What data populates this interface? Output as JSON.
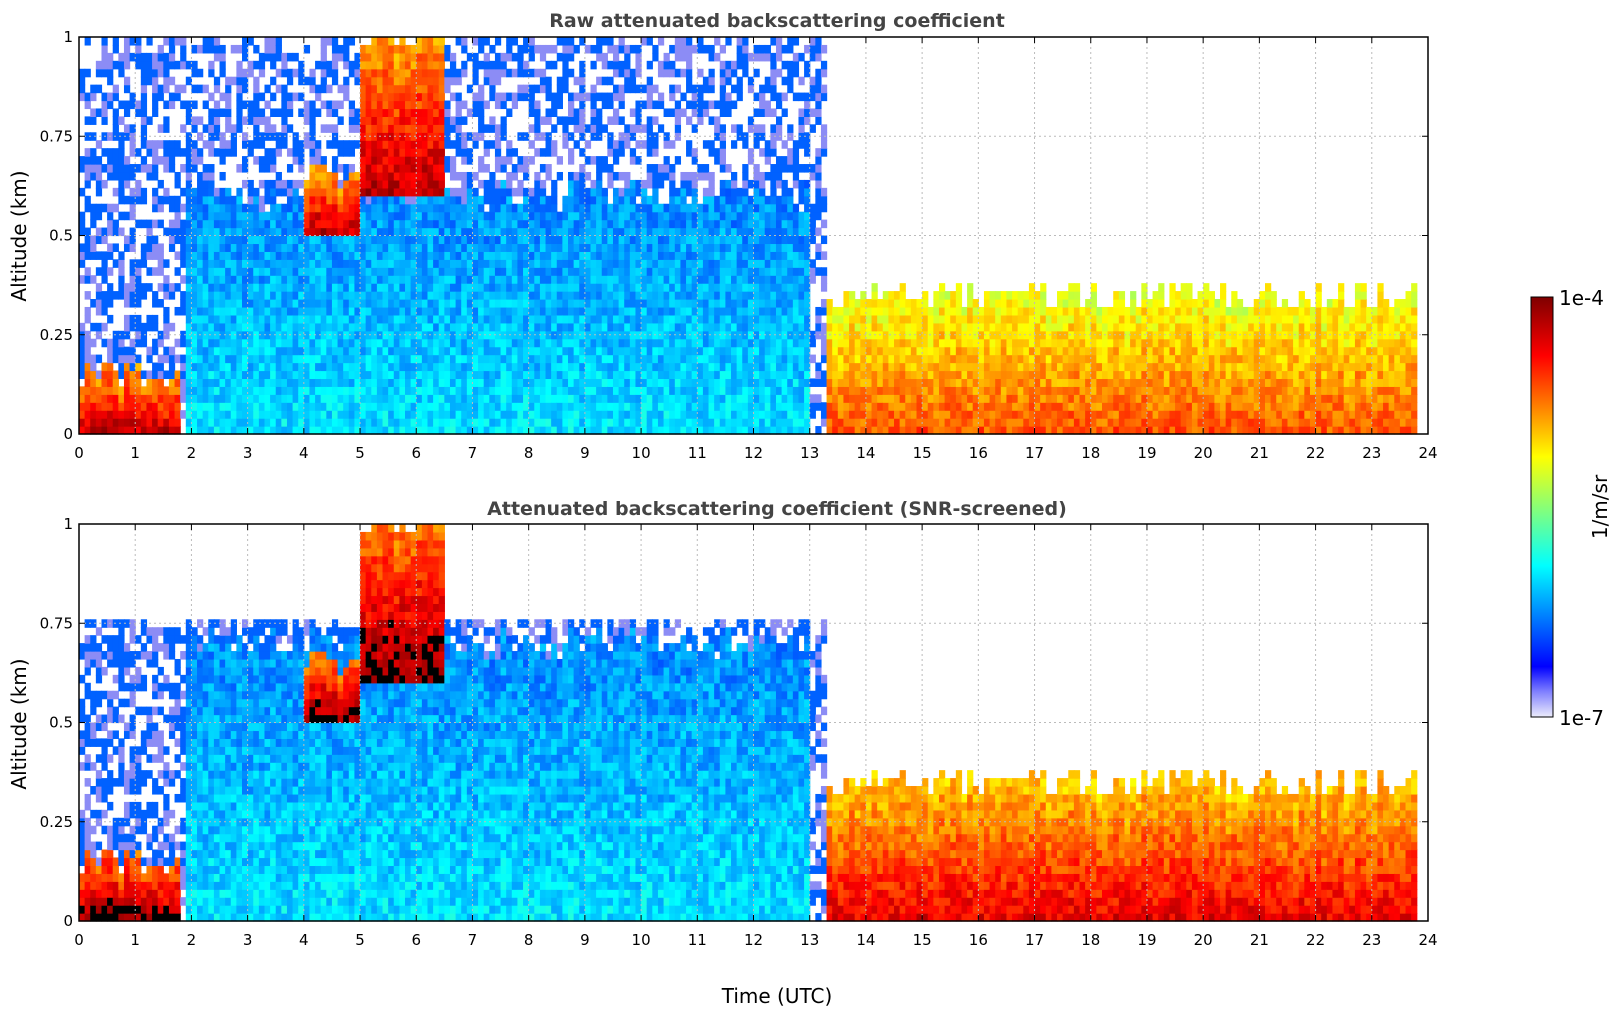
{
  "chart_data": [
    {
      "type": "heatmap",
      "title": "Raw attenuated backscattering coefficient",
      "xlabel": "",
      "ylabel": "Altitude (km)",
      "xlim": [
        0,
        24
      ],
      "ylim": [
        0,
        1
      ],
      "x_ticks": [
        "0",
        "1",
        "2",
        "3",
        "4",
        "5",
        "6",
        "7",
        "8",
        "9",
        "10",
        "11",
        "12",
        "13",
        "14",
        "15",
        "16",
        "17",
        "18",
        "19",
        "20",
        "21",
        "22",
        "23",
        "24"
      ],
      "y_ticks": [
        "0",
        "0.25",
        "0.5",
        "0.75",
        "1"
      ],
      "grid": true,
      "screened": false,
      "features": [
        {
          "name": "fog_layer",
          "t0": 0.0,
          "t1": 1.8,
          "h0": 0.0,
          "h1": 0.15,
          "level": 0.95
        },
        {
          "name": "aerosol_layer",
          "t0": 1.9,
          "t1": 13.0,
          "h0": 0.0,
          "h1": 0.6,
          "level": 0.35
        },
        {
          "name": "cloud_layer",
          "t0": 4.0,
          "t1": 5.0,
          "h0": 0.5,
          "h1": 0.65,
          "level": 0.95
        },
        {
          "name": "rising_cloud",
          "t0": 5.0,
          "t1": 6.5,
          "h0": 0.6,
          "h1": 1.0,
          "level": 0.95
        },
        {
          "name": "boundary_layer",
          "t0": 13.3,
          "t1": 23.8,
          "h0": 0.0,
          "h1": 0.35,
          "level": 0.8
        }
      ]
    },
    {
      "type": "heatmap",
      "title": "Attenuated backscattering coefficient (SNR-screened)",
      "xlabel": "Time (UTC)",
      "ylabel": "Altitude (km)",
      "xlim": [
        0,
        24
      ],
      "ylim": [
        0,
        1
      ],
      "x_ticks": [
        "0",
        "1",
        "2",
        "3",
        "4",
        "5",
        "6",
        "7",
        "8",
        "9",
        "10",
        "11",
        "12",
        "13",
        "14",
        "15",
        "16",
        "17",
        "18",
        "19",
        "20",
        "21",
        "22",
        "23",
        "24"
      ],
      "y_ticks": [
        "0",
        "0.25",
        "0.5",
        "0.75",
        "1"
      ],
      "grid": true,
      "screened": true,
      "features": [
        {
          "name": "fog_layer",
          "t0": 0.0,
          "t1": 1.8,
          "h0": 0.0,
          "h1": 0.15,
          "level": 1.0
        },
        {
          "name": "aerosol_layer",
          "t0": 1.9,
          "t1": 13.0,
          "h0": 0.0,
          "h1": 0.7,
          "level": 0.35
        },
        {
          "name": "cloud_layer",
          "t0": 4.0,
          "t1": 5.0,
          "h0": 0.5,
          "h1": 0.65,
          "level": 1.0
        },
        {
          "name": "rising_cloud",
          "t0": 5.0,
          "t1": 6.5,
          "h0": 0.6,
          "h1": 1.0,
          "level": 1.0
        },
        {
          "name": "boundary_layer",
          "t0": 13.3,
          "t1": 23.8,
          "h0": 0.0,
          "h1": 0.35,
          "level": 0.9
        }
      ]
    }
  ],
  "colorbar": {
    "label": "1/m/sr",
    "max_label": "1e-4",
    "min_label": "1e-7",
    "colormap": "jet",
    "low_color": "#e8e8fa",
    "high_color": "#7f0000"
  }
}
